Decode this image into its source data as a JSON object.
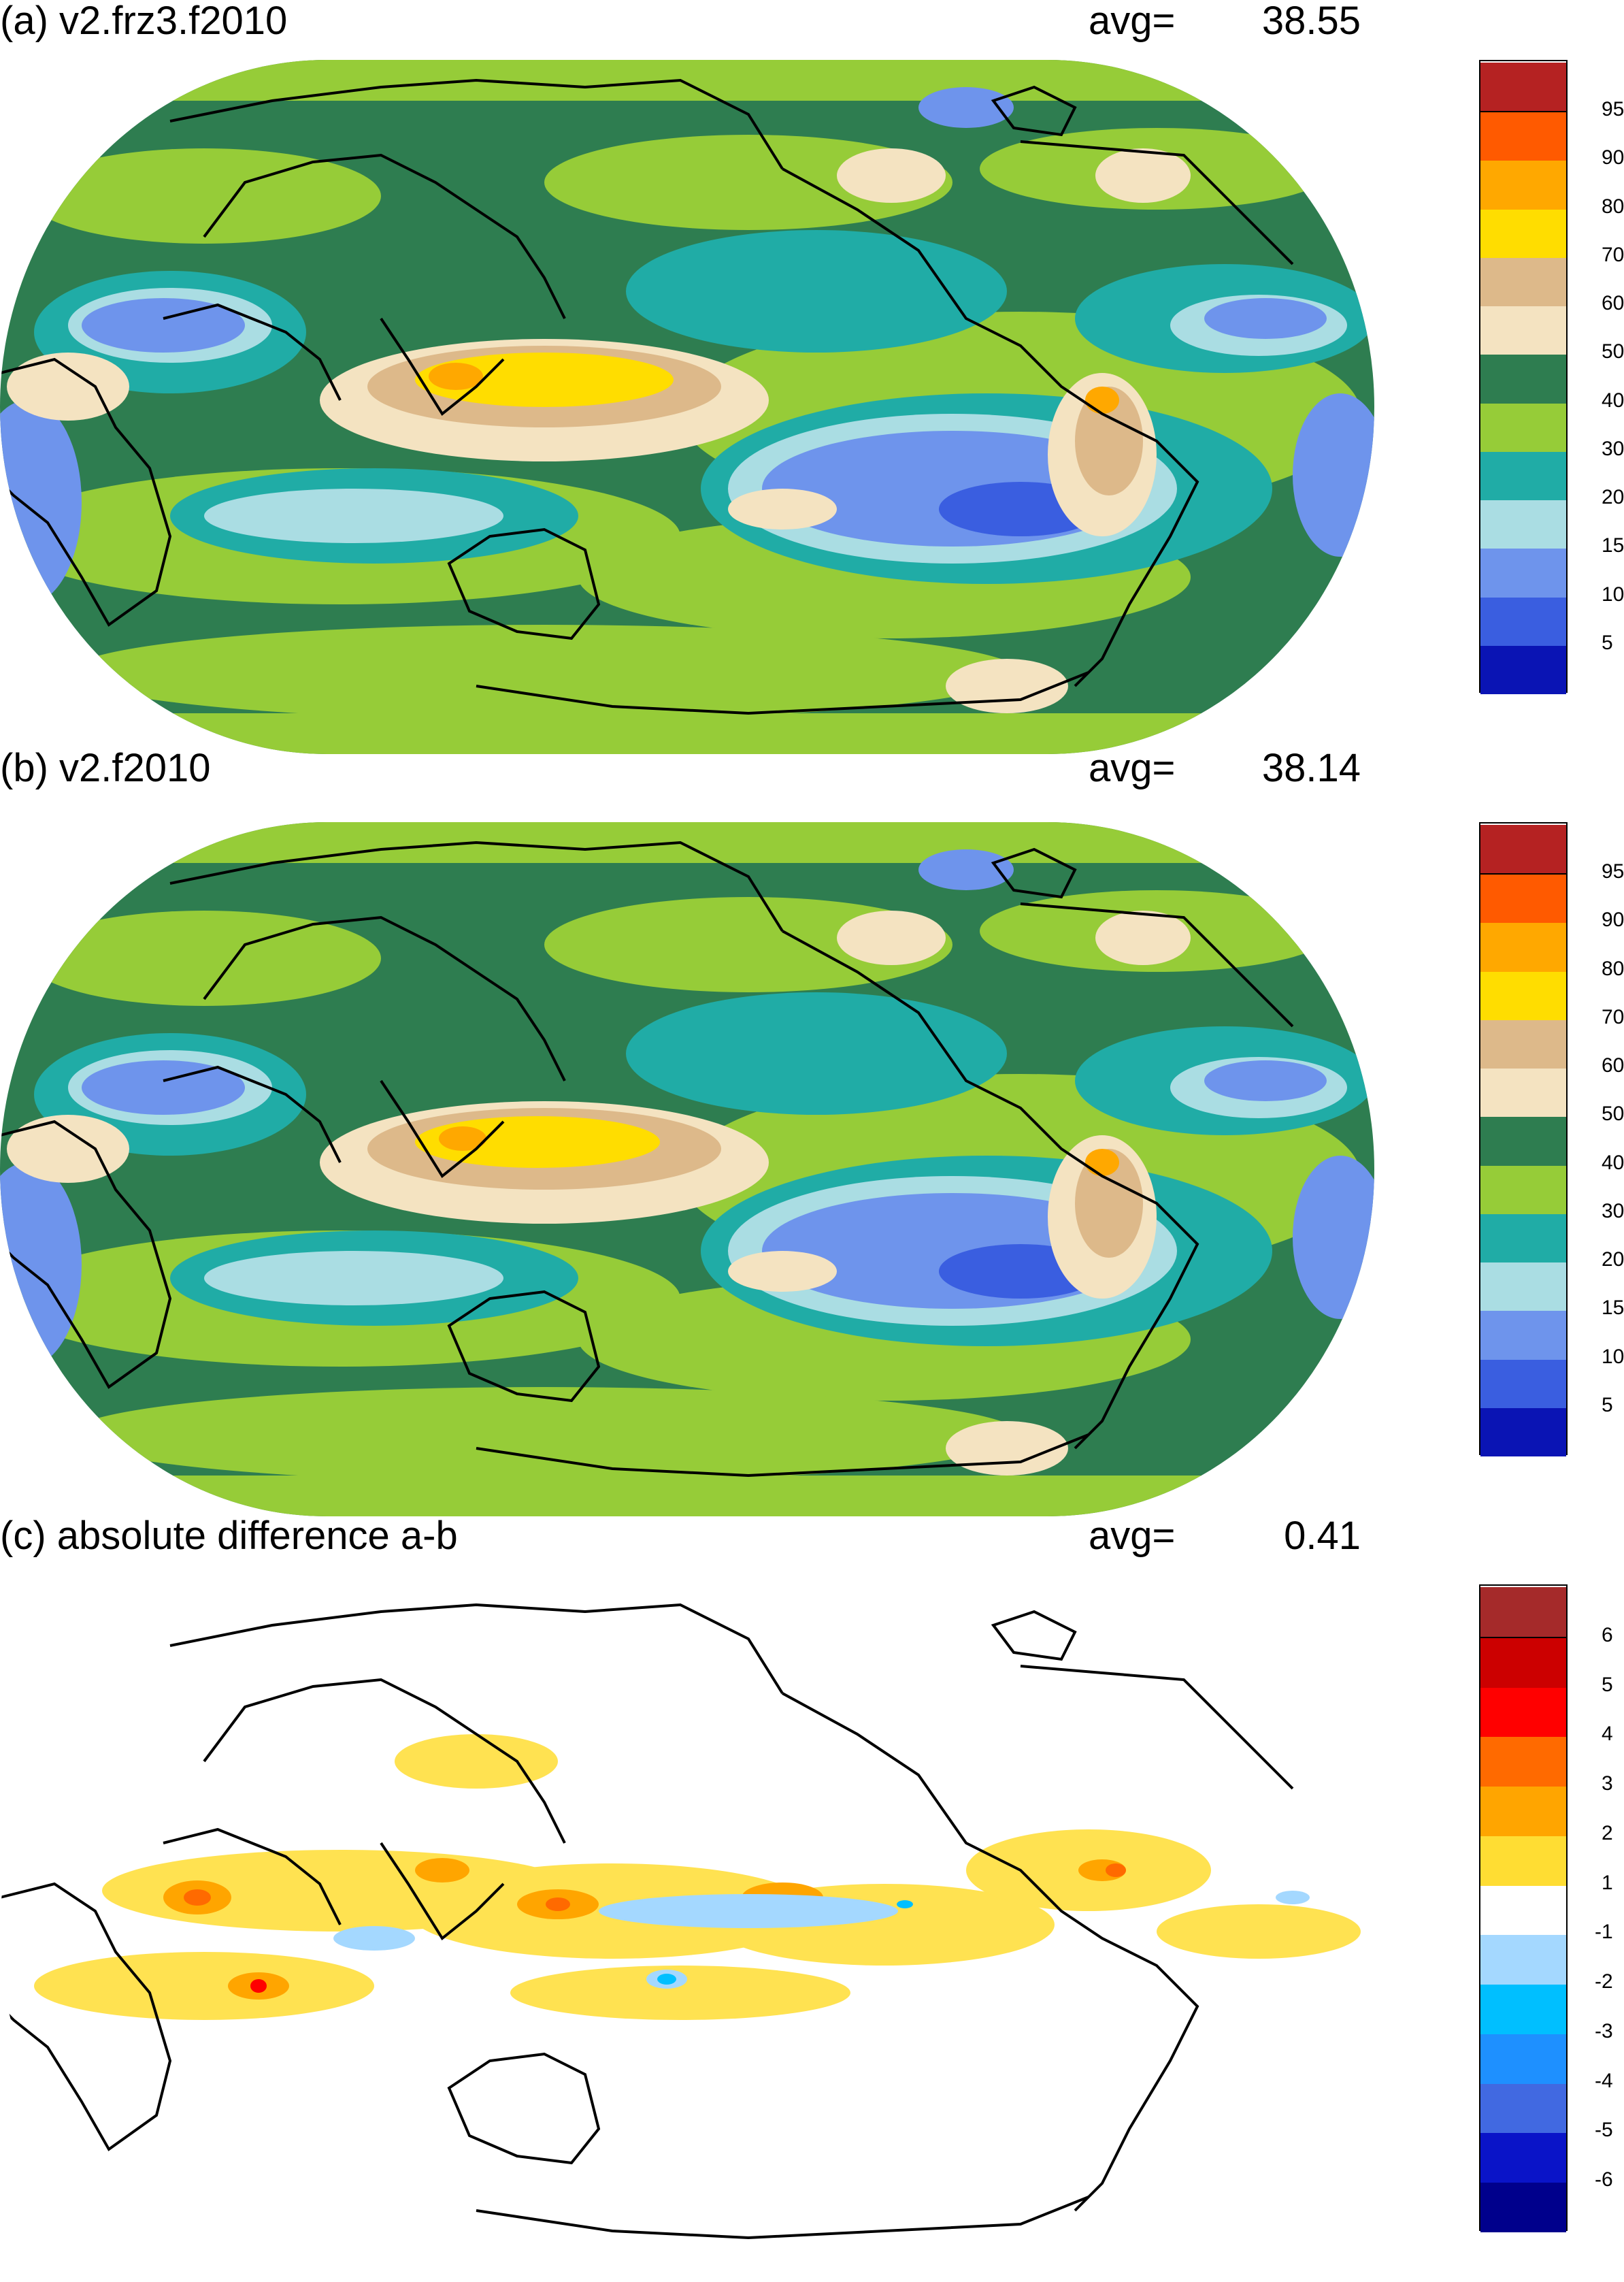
{
  "panels": [
    {
      "title": "(a) v2.frz3.f2010",
      "avg_label": "avg=",
      "avg_value": "38.55",
      "colorbar": {
        "colors": [
          "#0a14b4",
          "#3a5ee0",
          "#6e94ec",
          "#aadde3",
          "#20aca6",
          "#96cc38",
          "#2e7d50",
          "#f4e3c1",
          "#ddb98a",
          "#ffdd00",
          "#ffa800",
          "#ff5a00",
          "#b52222"
        ],
        "tick_labels": [
          "5",
          "10",
          "15",
          "20",
          "30",
          "40",
          "50",
          "60",
          "70",
          "80",
          "90",
          "95"
        ]
      }
    },
    {
      "title": "(b) v2.f2010",
      "avg_label": "avg=",
      "avg_value": "38.14",
      "colorbar": {
        "colors": [
          "#0a14b4",
          "#3a5ee0",
          "#6e94ec",
          "#aadde3",
          "#20aca6",
          "#96cc38",
          "#2e7d50",
          "#f4e3c1",
          "#ddb98a",
          "#ffdd00",
          "#ffa800",
          "#ff5a00",
          "#b52222"
        ],
        "tick_labels": [
          "5",
          "10",
          "15",
          "20",
          "30",
          "40",
          "50",
          "60",
          "70",
          "80",
          "90",
          "95"
        ]
      }
    },
    {
      "title": "(c) absolute difference a-b",
      "avg_label": "avg=",
      "avg_value": "0.41",
      "colorbar": {
        "colors": [
          "#00008c",
          "#0a14c8",
          "#4169e1",
          "#1e90ff",
          "#00bfff",
          "#a4d8ff",
          "#ffffff",
          "#ffdd33",
          "#ffa500",
          "#ff6a00",
          "#ff0000",
          "#cc0000",
          "#a52a2a"
        ],
        "tick_labels": [
          "-6",
          "-5",
          "-4",
          "-3",
          "-2",
          "-1",
          "1",
          "2",
          "3",
          "4",
          "5",
          "6"
        ]
      }
    }
  ]
}
